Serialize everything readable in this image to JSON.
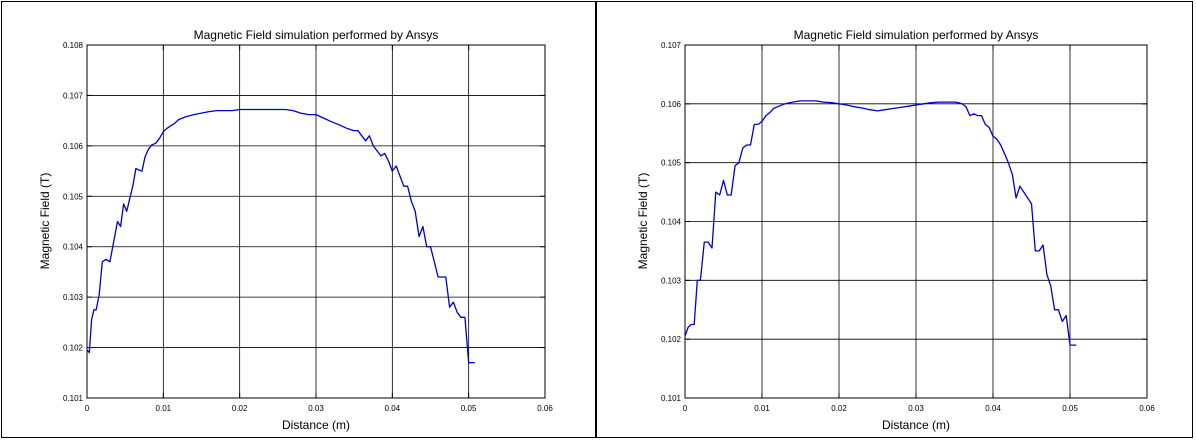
{
  "chart_data": [
    {
      "type": "line",
      "title": "Magnetic Field simulation performed by Ansys",
      "xlabel": "Distance (m)",
      "ylabel": "Magnetic Field (T)",
      "xlim": [
        0,
        0.06
      ],
      "ylim": [
        0.101,
        0.108
      ],
      "xticks": [
        0,
        0.01,
        0.02,
        0.03,
        0.04,
        0.05,
        0.06
      ],
      "xtick_labels": [
        "0",
        "0.01",
        "0.02",
        "0.03",
        "0.04",
        "0.05",
        "0.06"
      ],
      "yticks": [
        0.101,
        0.102,
        0.103,
        0.104,
        0.105,
        0.106,
        0.107,
        0.108
      ],
      "ytick_labels": [
        "0.101",
        "0.102",
        "0.103",
        "0.104",
        "0.105",
        "0.106",
        "0.107",
        "0.108"
      ],
      "grid": true,
      "line_color": "#0000cc",
      "series": [
        {
          "x": [
            0,
            0.0003,
            0.0006,
            0.0009,
            0.0012,
            0.0016,
            0.002,
            0.0025,
            0.003,
            0.0035,
            0.004,
            0.0044,
            0.0048,
            0.0052,
            0.0056,
            0.006,
            0.0064,
            0.0068,
            0.0072,
            0.0076,
            0.008,
            0.0085,
            0.009,
            0.0095,
            0.01,
            0.0105,
            0.011,
            0.0115,
            0.012,
            0.013,
            0.014,
            0.015,
            0.016,
            0.017,
            0.018,
            0.019,
            0.02,
            0.021,
            0.022,
            0.023,
            0.024,
            0.025,
            0.026,
            0.027,
            0.028,
            0.029,
            0.03,
            0.031,
            0.032,
            0.033,
            0.034,
            0.035,
            0.0355,
            0.036,
            0.0365,
            0.037,
            0.0375,
            0.038,
            0.0385,
            0.039,
            0.0395,
            0.04,
            0.0405,
            0.041,
            0.0415,
            0.042,
            0.0425,
            0.043,
            0.0435,
            0.044,
            0.0445,
            0.045,
            0.0455,
            0.046,
            0.0465,
            0.047,
            0.0475,
            0.048,
            0.0485,
            0.049,
            0.0495,
            0.05,
            0.0504,
            0.0508
          ],
          "y": [
            0.10195,
            0.1019,
            0.10255,
            0.10275,
            0.10275,
            0.10305,
            0.1037,
            0.10375,
            0.1037,
            0.1041,
            0.1045,
            0.1044,
            0.10485,
            0.1047,
            0.10495,
            0.1052,
            0.10555,
            0.10552,
            0.1055,
            0.10578,
            0.10592,
            0.10602,
            0.10605,
            0.10615,
            0.10628,
            0.10635,
            0.1064,
            0.10645,
            0.10652,
            0.10658,
            0.10662,
            0.10665,
            0.10668,
            0.1067,
            0.1067,
            0.1067,
            0.10672,
            0.10672,
            0.10672,
            0.10672,
            0.10672,
            0.10672,
            0.10672,
            0.1067,
            0.10665,
            0.10662,
            0.10662,
            0.10655,
            0.10648,
            0.10642,
            0.10635,
            0.1063,
            0.1063,
            0.1062,
            0.1061,
            0.1062,
            0.106,
            0.1059,
            0.1058,
            0.10585,
            0.1057,
            0.1055,
            0.1056,
            0.1054,
            0.1052,
            0.1052,
            0.1049,
            0.1047,
            0.1042,
            0.1044,
            0.104,
            0.104,
            0.1037,
            0.1034,
            0.1034,
            0.1034,
            0.1028,
            0.1029,
            0.1027,
            0.1026,
            0.1026,
            0.1017,
            0.1017,
            0.1017
          ]
        }
      ]
    },
    {
      "type": "line",
      "title": "Magnetic Field simulation performed by Ansys",
      "xlabel": "Distance (m)",
      "ylabel": "Magnetic Field (T)",
      "xlim": [
        0,
        0.06
      ],
      "ylim": [
        0.101,
        0.107
      ],
      "xticks": [
        0,
        0.01,
        0.02,
        0.03,
        0.04,
        0.05,
        0.06
      ],
      "xtick_labels": [
        "0",
        "0.01",
        "0.02",
        "0.03",
        "0.04",
        "0.05",
        "0.06"
      ],
      "yticks": [
        0.101,
        0.102,
        0.103,
        0.104,
        0.105,
        0.106,
        0.107
      ],
      "ytick_labels": [
        "0.101",
        "0.102",
        "0.103",
        "0.104",
        "0.105",
        "0.106",
        "0.107"
      ],
      "grid": true,
      "line_color": "#0000cc",
      "series": [
        {
          "x": [
            0,
            0.0004,
            0.0008,
            0.0012,
            0.0016,
            0.002,
            0.0025,
            0.003,
            0.0035,
            0.004,
            0.0045,
            0.005,
            0.0055,
            0.006,
            0.0065,
            0.007,
            0.0075,
            0.008,
            0.0085,
            0.009,
            0.0095,
            0.01,
            0.0105,
            0.011,
            0.0115,
            0.012,
            0.013,
            0.014,
            0.015,
            0.016,
            0.017,
            0.018,
            0.019,
            0.02,
            0.021,
            0.022,
            0.023,
            0.024,
            0.025,
            0.026,
            0.027,
            0.028,
            0.029,
            0.03,
            0.031,
            0.032,
            0.033,
            0.034,
            0.035,
            0.0355,
            0.036,
            0.0365,
            0.037,
            0.0375,
            0.038,
            0.0385,
            0.039,
            0.0395,
            0.04,
            0.0405,
            0.041,
            0.0415,
            0.042,
            0.0425,
            0.043,
            0.0435,
            0.044,
            0.0445,
            0.045,
            0.0455,
            0.046,
            0.0465,
            0.047,
            0.0475,
            0.048,
            0.0485,
            0.049,
            0.0495,
            0.05,
            0.0504,
            0.0508
          ],
          "y": [
            0.10205,
            0.1022,
            0.10225,
            0.10225,
            0.103,
            0.103,
            0.10365,
            0.10365,
            0.10355,
            0.1045,
            0.10445,
            0.1047,
            0.10445,
            0.10445,
            0.10495,
            0.105,
            0.10525,
            0.1053,
            0.1053,
            0.10565,
            0.10565,
            0.1057,
            0.1058,
            0.10585,
            0.10592,
            0.10595,
            0.106,
            0.10603,
            0.10605,
            0.10605,
            0.10605,
            0.10603,
            0.10602,
            0.106,
            0.10598,
            0.10595,
            0.10593,
            0.1059,
            0.10588,
            0.1059,
            0.10592,
            0.10594,
            0.10596,
            0.10598,
            0.106,
            0.10602,
            0.10603,
            0.10603,
            0.10603,
            0.10602,
            0.106,
            0.10595,
            0.1058,
            0.10583,
            0.1058,
            0.1058,
            0.10565,
            0.1056,
            0.10545,
            0.1054,
            0.1053,
            0.10515,
            0.105,
            0.1048,
            0.1044,
            0.1046,
            0.1045,
            0.1044,
            0.1043,
            0.1035,
            0.1035,
            0.1036,
            0.1031,
            0.1029,
            0.1025,
            0.1025,
            0.1023,
            0.1024,
            0.1019,
            0.1019,
            0.1019
          ]
        }
      ]
    }
  ]
}
